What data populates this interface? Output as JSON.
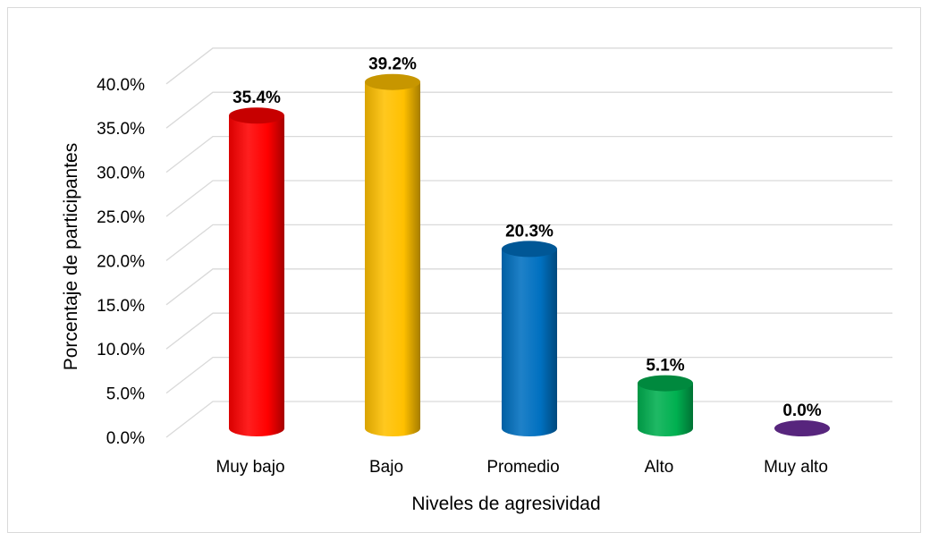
{
  "chart_data": {
    "type": "bar",
    "categories": [
      "Muy bajo",
      "Bajo",
      "Promedio",
      "Alto",
      "Muy alto"
    ],
    "values": [
      35.4,
      39.2,
      20.3,
      5.1,
      0.0
    ],
    "data_labels": [
      "35.4%",
      "39.2%",
      "20.3%",
      "5.1%",
      "0.0%"
    ],
    "colors": [
      "#ff0000",
      "#ffc000",
      "#0070c0",
      "#00b050",
      "#7030a0"
    ],
    "xlabel": "Niveles de agresividad",
    "ylabel": "Porcentaje de participantes",
    "ylim": [
      0,
      40
    ],
    "y_ticks": [
      "0.0%",
      "5.0%",
      "10.0%",
      "15.0%",
      "20.0%",
      "25.0%",
      "30.0%",
      "35.0%",
      "40.0%"
    ],
    "grid": true,
    "style": "3d-cylinder",
    "legend": "none"
  }
}
